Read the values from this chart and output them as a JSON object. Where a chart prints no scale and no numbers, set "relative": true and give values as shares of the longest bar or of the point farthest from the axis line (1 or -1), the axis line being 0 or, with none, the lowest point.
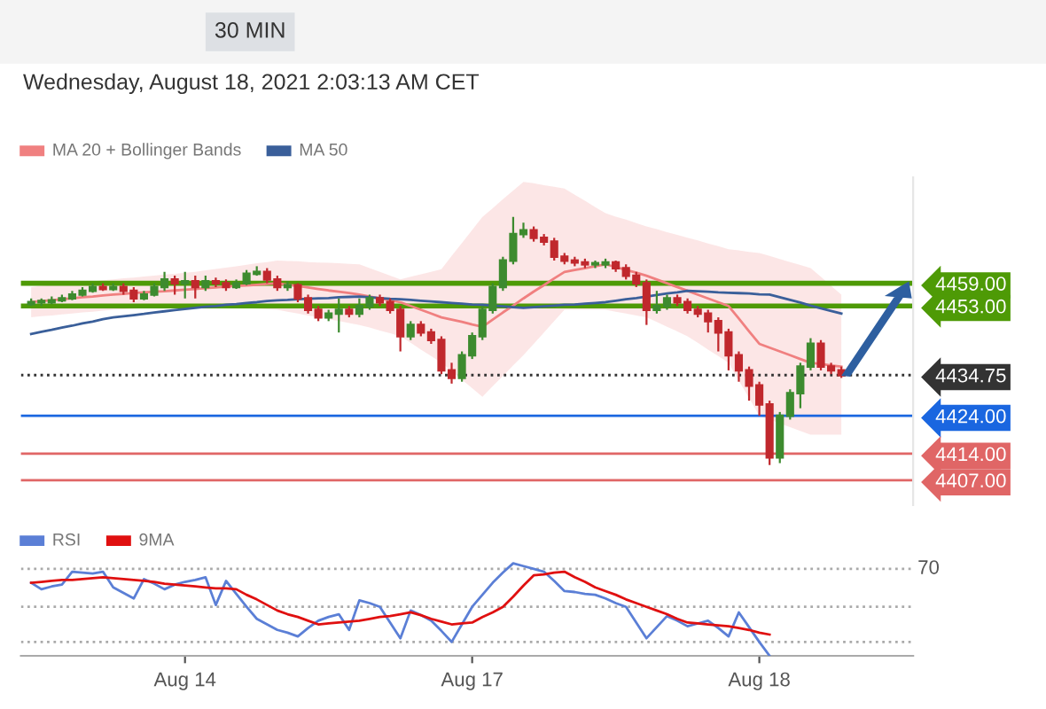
{
  "chart_data": [
    {
      "type": "candlestick",
      "title": "30 MIN",
      "subtitle": "Wednesday, August 18, 2021 2:03:13 AM CET",
      "categories": [
        null,
        null,
        null,
        null,
        null,
        null,
        null,
        null,
        null,
        null,
        null,
        null,
        null,
        null,
        null,
        null,
        null,
        null,
        null,
        null,
        null,
        null,
        null,
        null,
        null,
        null,
        null,
        null,
        null,
        null,
        null,
        null,
        null,
        null,
        null,
        null,
        null,
        null,
        null,
        null,
        null,
        null,
        null,
        null,
        null,
        null,
        null,
        null,
        null,
        null,
        null,
        null,
        null,
        null,
        null,
        null,
        null,
        null,
        null,
        null,
        null,
        null,
        null,
        null,
        null,
        null,
        null,
        null,
        null,
        null,
        null,
        null,
        null,
        null,
        null,
        null,
        null,
        null,
        null,
        null
      ],
      "ohlc": [
        [
          4453.5,
          4455,
          4453,
          4454
        ],
        [
          4454,
          4455,
          4453,
          4454
        ],
        [
          4454,
          4455.5,
          4453.5,
          4454.5
        ],
        [
          4454.5,
          4456,
          4454,
          4455
        ],
        [
          4455,
          4457,
          4454.5,
          4456
        ],
        [
          4456,
          4458,
          4455.5,
          4457
        ],
        [
          4457,
          4459,
          4456.5,
          4458
        ],
        [
          4458,
          4459,
          4457,
          4457.5
        ],
        [
          4457.5,
          4459,
          4457,
          4458
        ],
        [
          4458,
          4459,
          4456,
          4457
        ],
        [
          4457,
          4458,
          4454,
          4455
        ],
        [
          4455,
          4457,
          4454.5,
          4456
        ],
        [
          4456,
          4459,
          4455.5,
          4458
        ],
        [
          4458,
          4462,
          4457,
          4460
        ],
        [
          4460,
          4461,
          4456,
          4459
        ],
        [
          4459,
          4462,
          4455,
          4459.5
        ],
        [
          4459.5,
          4461,
          4455,
          4458
        ],
        [
          4458,
          4461,
          4457,
          4459.5
        ],
        [
          4459.5,
          4460.5,
          4458,
          4459
        ],
        [
          4459,
          4460,
          4457,
          4458
        ],
        [
          4458,
          4460,
          4457.5,
          4459
        ],
        [
          4459,
          4462.5,
          4458.5,
          4461.5
        ],
        [
          4461.5,
          4463.5,
          4461,
          4462
        ],
        [
          4462,
          4463,
          4459,
          4460
        ],
        [
          4460,
          4461,
          4457,
          4458
        ],
        [
          4458,
          4459.5,
          4457,
          4458.5
        ],
        [
          4458.5,
          4459,
          4454,
          4455
        ],
        [
          4455,
          4456,
          4451,
          4452
        ],
        [
          4452,
          4453,
          4449,
          4450
        ],
        [
          4450,
          4452,
          4449,
          4451
        ],
        [
          4451,
          4455,
          4446,
          4452
        ],
        [
          4452,
          4453,
          4450,
          4451
        ],
        [
          4451,
          4455,
          4450,
          4453
        ],
        [
          4453,
          4456,
          4452,
          4455
        ],
        [
          4455,
          4456,
          4453,
          4454
        ],
        [
          4454,
          4455,
          4451,
          4452
        ],
        [
          4452,
          4453,
          4441,
          4445
        ],
        [
          4445,
          4449,
          4444,
          4448
        ],
        [
          4448,
          4449,
          4445,
          4446
        ],
        [
          4446,
          4447,
          4443,
          4444
        ],
        [
          4444,
          4445,
          4435,
          4436
        ],
        [
          4436,
          4438,
          4432.5,
          4434
        ],
        [
          4434,
          4441,
          4433,
          4440
        ],
        [
          4440,
          4446,
          4439,
          4445
        ],
        [
          4445,
          4453,
          4444,
          4452
        ],
        [
          4452,
          4459,
          4451,
          4458
        ],
        [
          4458,
          4466,
          4457,
          4465
        ],
        [
          4465,
          4476.5,
          4464,
          4472
        ],
        [
          4472,
          4475,
          4471,
          4473
        ],
        [
          4473,
          4474,
          4470,
          4471
        ],
        [
          4471,
          4472,
          4469,
          4470
        ],
        [
          4470,
          4471,
          4465,
          4466
        ],
        [
          4466,
          4467,
          4464,
          4465
        ],
        [
          4465,
          4466,
          4463.5,
          4464.5
        ],
        [
          4464.5,
          4465.5,
          4463,
          4464
        ],
        [
          4464,
          4465,
          4463,
          4464
        ],
        [
          4464,
          4465.5,
          4463,
          4464.5
        ],
        [
          4464.5,
          4465,
          4462,
          4463
        ],
        [
          4463,
          4464,
          4460,
          4461
        ],
        [
          4461,
          4462,
          4458,
          4459
        ],
        [
          4459,
          4460,
          4448,
          4452
        ],
        [
          4452,
          4457,
          4451,
          4453
        ],
        [
          4453,
          4456,
          4452,
          4455
        ],
        [
          4455,
          4456,
          4453,
          4454
        ],
        [
          4454,
          4455,
          4451,
          4452
        ],
        [
          4452,
          4453,
          4450,
          4451
        ],
        [
          4451,
          4452,
          4446,
          4449
        ],
        [
          4449,
          4450,
          4441,
          4446
        ],
        [
          4446,
          4447,
          4436,
          4440
        ],
        [
          4440,
          4441,
          4433,
          4436
        ],
        [
          4436,
          4437,
          4428,
          4432
        ],
        [
          4432,
          4433,
          4424,
          4427
        ],
        [
          4427,
          4428,
          4411,
          4413
        ],
        [
          4413,
          4425,
          4411.5,
          4424
        ],
        [
          4424,
          4431,
          4423,
          4430
        ],
        [
          4430,
          4438,
          4426,
          4437
        ],
        [
          4437,
          4444.5,
          4436,
          4443
        ],
        [
          4443,
          4444,
          4436,
          4437
        ],
        [
          4437,
          4438,
          4435,
          4436
        ],
        [
          4436,
          4437,
          4434,
          4434.75
        ]
      ],
      "series": [
        {
          "name": "MA 20 + Bollinger Bands",
          "type": "line",
          "color": "#f08080",
          "values": [
            4454,
            4454.3,
            4454.5,
            4454.8,
            4455,
            4455.3,
            4455.5,
            4455.8,
            4456,
            4456.2,
            4456.4,
            4456.6,
            4456.8,
            4456.9,
            4457.1,
            4457.3,
            4457.5,
            4457.7,
            4457.9,
            4458.1,
            4458.3,
            4458.4,
            4458.6,
            4458.8,
            4459,
            4458.6,
            4458.3,
            4457.9,
            4457.5,
            4457.1,
            4456.8,
            4456.4,
            4456,
            4455.5,
            4455,
            4454.5,
            4454,
            4453,
            4452,
            4451,
            4450,
            4449.4,
            4448.8,
            4448.1,
            4447.5,
            4449.4,
            4451.3,
            4453.1,
            4455,
            4456.8,
            4458.5,
            4460.3,
            4462,
            4462.5,
            4463,
            4463.5,
            4464,
            4463.3,
            4462.5,
            4461.8,
            4461,
            4460,
            4459,
            4458,
            4457,
            4456,
            4455,
            4454,
            4453,
            4449.7,
            4446.3,
            4443,
            4442,
            4441,
            4440,
            4439,
            4438,
            4437.7,
            4437.3,
            4437
          ],
          "lower": [
            4450,
            4450.3,
            4450.5,
            4450.8,
            4451,
            4451.3,
            4451.5,
            4451.8,
            4452,
            4452.1,
            4452.3,
            4452.4,
            4452.5,
            4452.6,
            4452.8,
            4452.9,
            4453,
            4452.9,
            4452.8,
            4452.6,
            4452.5,
            4452.4,
            4452.3,
            4452.1,
            4452,
            4451.5,
            4451,
            4450.5,
            4450,
            4449.5,
            4449,
            4448.5,
            4448,
            4447.3,
            4446.5,
            4445.8,
            4445,
            4443.3,
            4441.5,
            4439.8,
            4438,
            4435.8,
            4433.5,
            4431.3,
            4429,
            4431.8,
            4434.5,
            4437.3,
            4440,
            4443,
            4446,
            4449,
            4452,
            4452,
            4452,
            4452,
            4452,
            4451.5,
            4451,
            4450.5,
            4450,
            4448.8,
            4447.5,
            4446.3,
            4445,
            4443.3,
            4441.5,
            4439.8,
            4438,
            4433.3,
            4428.7,
            4424,
            4423,
            4422,
            4421,
            4420,
            4419,
            4419,
            4419,
            4419
          ],
          "upper": [
            4458,
            4458.3,
            4458.5,
            4458.8,
            4459,
            4459.3,
            4459.5,
            4459.8,
            4460,
            4460.3,
            4460.5,
            4460.8,
            4461,
            4461.3,
            4461.5,
            4461.8,
            4462,
            4462.4,
            4462.8,
            4463.1,
            4463.5,
            4463.9,
            4464.3,
            4464.6,
            4465,
            4464.9,
            4464.8,
            4464.6,
            4464.5,
            4464.4,
            4464.3,
            4464.1,
            4464,
            4463,
            4462,
            4461,
            4460,
            4460.7,
            4461.4,
            4462,
            4462.7,
            4466.2,
            4469.6,
            4473.1,
            4476.5,
            4478.8,
            4481.2,
            4483.5,
            4485.8,
            4485.4,
            4484.9,
            4484.5,
            4484,
            4482.4,
            4480.8,
            4479.1,
            4477.5,
            4476.6,
            4475.8,
            4474.9,
            4474,
            4473.3,
            4472.5,
            4471.8,
            4471,
            4470.3,
            4469.5,
            4468.8,
            4468,
            4467.7,
            4467.3,
            4467,
            4466.2,
            4465.4,
            4464.6,
            4463.8,
            4463,
            4460.7,
            4458.3,
            4456
          ]
        },
        {
          "name": "MA 50",
          "type": "line",
          "color": "#3a5f9a",
          "values": [
            4445.6,
            4446.2,
            4446.7,
            4447.3,
            4447.8,
            4448.4,
            4448.9,
            4449.5,
            4450,
            4450.3,
            4450.6,
            4450.9,
            4451.3,
            4451.6,
            4451.9,
            4452.2,
            4452.5,
            4452.8,
            4453,
            4453.3,
            4453.5,
            4453.8,
            4454,
            4454.3,
            4454.5,
            4454.6,
            4454.8,
            4454.9,
            4455,
            4455.1,
            4455.3,
            4455.4,
            4455.5,
            4455.3,
            4455.1,
            4454.9,
            4454.8,
            4454.6,
            4454.4,
            4454.2,
            4454,
            4453.8,
            4453.6,
            4453.4,
            4453.3,
            4453.1,
            4452.9,
            4452.7,
            4452.5,
            4452.7,
            4452.9,
            4453.1,
            4453.3,
            4453.4,
            4453.6,
            4453.8,
            4454,
            4454.4,
            4454.8,
            4455.1,
            4455.5,
            4455.9,
            4456.3,
            4456.6,
            4457,
            4456.9,
            4456.8,
            4456.6,
            4456.5,
            4456.4,
            4456.3,
            4456.1,
            4456,
            4455.3,
            4454.6,
            4453.9,
            4453.1,
            4452.4,
            4451.7,
            4451
          ]
        }
      ],
      "ref_lines": [
        {
          "axis": "y",
          "value": 4459,
          "color": "#4e9a06"
        },
        {
          "axis": "y",
          "value": 4453,
          "color": "#4e9a06"
        },
        {
          "axis": "y",
          "value": 4434.75,
          "color": "#333333",
          "line_style": "dotted"
        },
        {
          "axis": "y",
          "value": 4424,
          "color": "#1a66e0"
        },
        {
          "axis": "y",
          "value": 4414,
          "color": "#e06666"
        },
        {
          "axis": "y",
          "value": 4407,
          "color": "#e06666"
        }
      ],
      "yticks": [
        {
          "value": 4459,
          "label": "4459.00"
        },
        {
          "value": 4453,
          "label": "4453.00"
        },
        {
          "value": 4434.75,
          "label": "4434.75"
        },
        {
          "value": 4424,
          "label": "4424.00"
        },
        {
          "value": 4414,
          "label": "4414.00"
        },
        {
          "value": 4407,
          "label": "4407.00"
        }
      ],
      "ylim": [
        4400.4,
        4487
      ],
      "tick_labels": "y",
      "legend": "top left"
    },
    {
      "type": "line",
      "relative": true,
      "annotations": [
        "70"
      ],
      "categories": [
        null,
        null,
        null,
        null,
        null,
        null,
        null,
        null,
        null,
        null,
        null,
        null,
        null,
        null,
        null,
        "Aug 14",
        null,
        null,
        null,
        null,
        null,
        null,
        null,
        null,
        null,
        null,
        null,
        null,
        null,
        null,
        null,
        null,
        null,
        null,
        null,
        null,
        null,
        null,
        null,
        null,
        null,
        null,
        null,
        "Aug 17",
        null,
        null,
        null,
        null,
        null,
        null,
        null,
        null,
        null,
        null,
        null,
        null,
        null,
        null,
        null,
        null,
        null,
        null,
        null,
        null,
        null,
        null,
        null,
        null,
        null,
        null,
        null,
        "Aug 18",
        null,
        null,
        null,
        null,
        null,
        null,
        null,
        null
      ],
      "series": [
        {
          "name": "RSI",
          "color": "#5b7fd6",
          "values": [
            0.79,
            0.72,
            0.75,
            0.77,
            0.91,
            0.9,
            0.89,
            0.91,
            0.74,
            0.68,
            0.62,
            0.83,
            0.78,
            0.72,
            0.77,
            0.8,
            0.82,
            0.85,
            0.55,
            0.81,
            0.67,
            0.53,
            0.4,
            0.34,
            0.28,
            0.25,
            0.21,
            0.3,
            0.38,
            0.42,
            0.45,
            0.28,
            0.6,
            0.57,
            0.53,
            0.36,
            0.19,
            0.49,
            0.44,
            0.38,
            0.27,
            0.15,
            0.34,
            0.53,
            0.66,
            0.79,
            0.9,
            1,
            0.97,
            0.94,
            0.91,
            0.81,
            0.7,
            0.69,
            0.67,
            0.66,
            0.62,
            0.57,
            0.53,
            0.36,
            0.19,
            0.31,
            0.43,
            0.38,
            0.32,
            0.35,
            0.38,
            0.3,
            0.21,
            0.47,
            0.31,
            0.15,
            0,
            null,
            null,
            null,
            null,
            null,
            null,
            null
          ]
        },
        {
          "name": "9MA",
          "color": "#e01010",
          "values": [
            0.79,
            0.8,
            0.81,
            0.82,
            0.82,
            0.83,
            0.84,
            0.85,
            0.84,
            0.83,
            0.82,
            0.81,
            0.8,
            0.78,
            0.77,
            0.76,
            0.75,
            0.74,
            0.73,
            0.73,
            0.72,
            0.66,
            0.61,
            0.55,
            0.49,
            0.45,
            0.42,
            0.38,
            0.34,
            0.35,
            0.36,
            0.37,
            0.38,
            0.4,
            0.42,
            0.43,
            0.45,
            0.47,
            0.44,
            0.4,
            0.37,
            0.34,
            0.35,
            0.36,
            0.42,
            0.47,
            0.53,
            0.64,
            0.76,
            0.87,
            0.88,
            0.9,
            0.91,
            0.85,
            0.8,
            0.74,
            0.7,
            0.66,
            0.61,
            0.57,
            0.53,
            0.49,
            0.45,
            0.4,
            0.36,
            0.35,
            0.34,
            0.33,
            0.32,
            0.3,
            0.28,
            0.25,
            0.23,
            null,
            null,
            null,
            null,
            null,
            null,
            null
          ]
        }
      ],
      "ref_lines": [
        {
          "axis": "y",
          "value": 0.94,
          "color": "#aaaaaa",
          "line_style": "dotted"
        },
        {
          "axis": "y",
          "value": 0.53,
          "color": "#aaaaaa",
          "line_style": "dotted"
        },
        {
          "axis": "y",
          "value": 0.15,
          "color": "#aaaaaa",
          "line_style": "dotted"
        }
      ],
      "tick_labels": "x",
      "legend": "top left"
    }
  ]
}
